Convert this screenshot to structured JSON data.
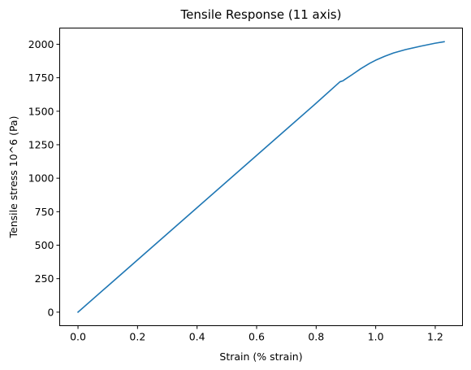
{
  "chart_data": {
    "type": "line",
    "title": "Tensile Response (11 axis)",
    "xlabel": "Strain (% strain)",
    "ylabel": "Tensile stress 10^6 (Pa)",
    "xlim": [
      -0.0615,
      1.2915
    ],
    "ylim": [
      -101,
      2121
    ],
    "xticks": [
      0.0,
      0.2,
      0.4,
      0.6,
      0.8,
      1.0,
      1.2
    ],
    "xtick_labels": [
      "0.0",
      "0.2",
      "0.4",
      "0.6",
      "0.8",
      "1.0",
      "1.2"
    ],
    "yticks": [
      0,
      250,
      500,
      750,
      1000,
      1250,
      1500,
      1750,
      2000
    ],
    "ytick_labels": [
      "0",
      "250",
      "500",
      "750",
      "1000",
      "1250",
      "1500",
      "1750",
      "2000"
    ],
    "grid": false,
    "line_color": "#1f77b4",
    "series": [
      {
        "x": [
          0.0,
          0.1,
          0.2,
          0.3,
          0.4,
          0.5,
          0.6,
          0.7,
          0.8,
          0.88,
          0.89,
          0.895,
          0.92,
          0.95,
          0.98,
          1.0,
          1.03,
          1.06,
          1.1,
          1.15,
          1.2,
          1.23
        ],
        "y": [
          0,
          195,
          390,
          585,
          780,
          975,
          1170,
          1365,
          1560,
          1720,
          1727,
          1735,
          1772,
          1818,
          1858,
          1881,
          1910,
          1935,
          1960,
          1985,
          2008,
          2019
        ]
      }
    ]
  }
}
